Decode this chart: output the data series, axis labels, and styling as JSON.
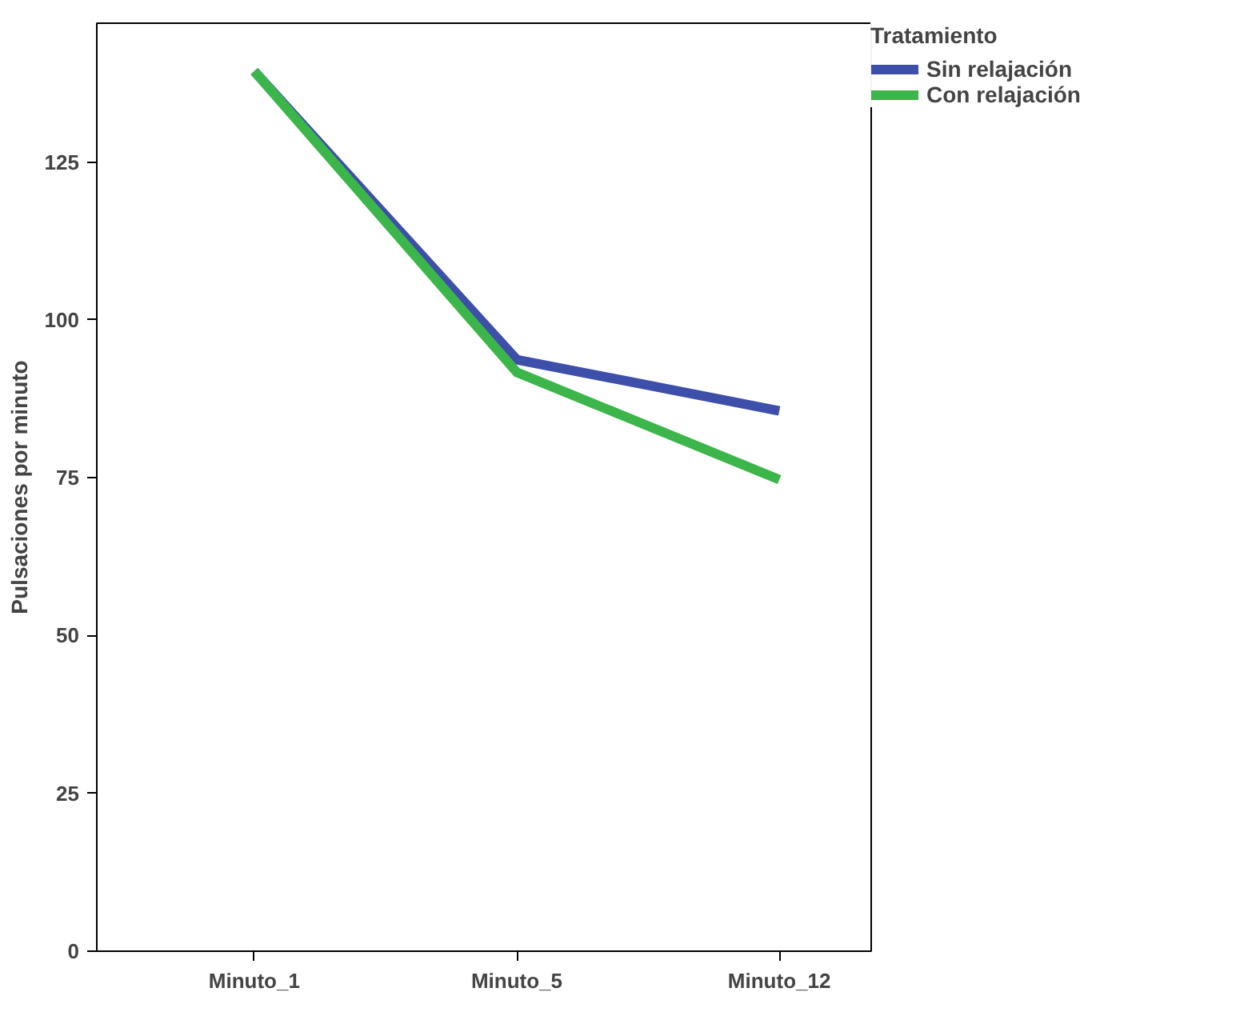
{
  "chart_data": {
    "type": "line",
    "ylabel": "Pulsaciones por minuto",
    "legend_title": "Tratamiento",
    "categories": [
      "Minuto_1",
      "Minuto_5",
      "Minuto_12"
    ],
    "series": [
      {
        "name": "Sin relajación",
        "color": "#3d4fa8",
        "values": [
          139.4,
          93.7,
          85.6
        ]
      },
      {
        "name": "Con relajación",
        "color": "#3cb54a",
        "values": [
          139.4,
          91.7,
          74.7
        ]
      }
    ],
    "ylim": [
      0,
      147
    ],
    "yticks": [
      0,
      25,
      50,
      75,
      100,
      125
    ],
    "grid": false,
    "legend": "top right",
    "marker": "none",
    "line_style": "solid"
  }
}
